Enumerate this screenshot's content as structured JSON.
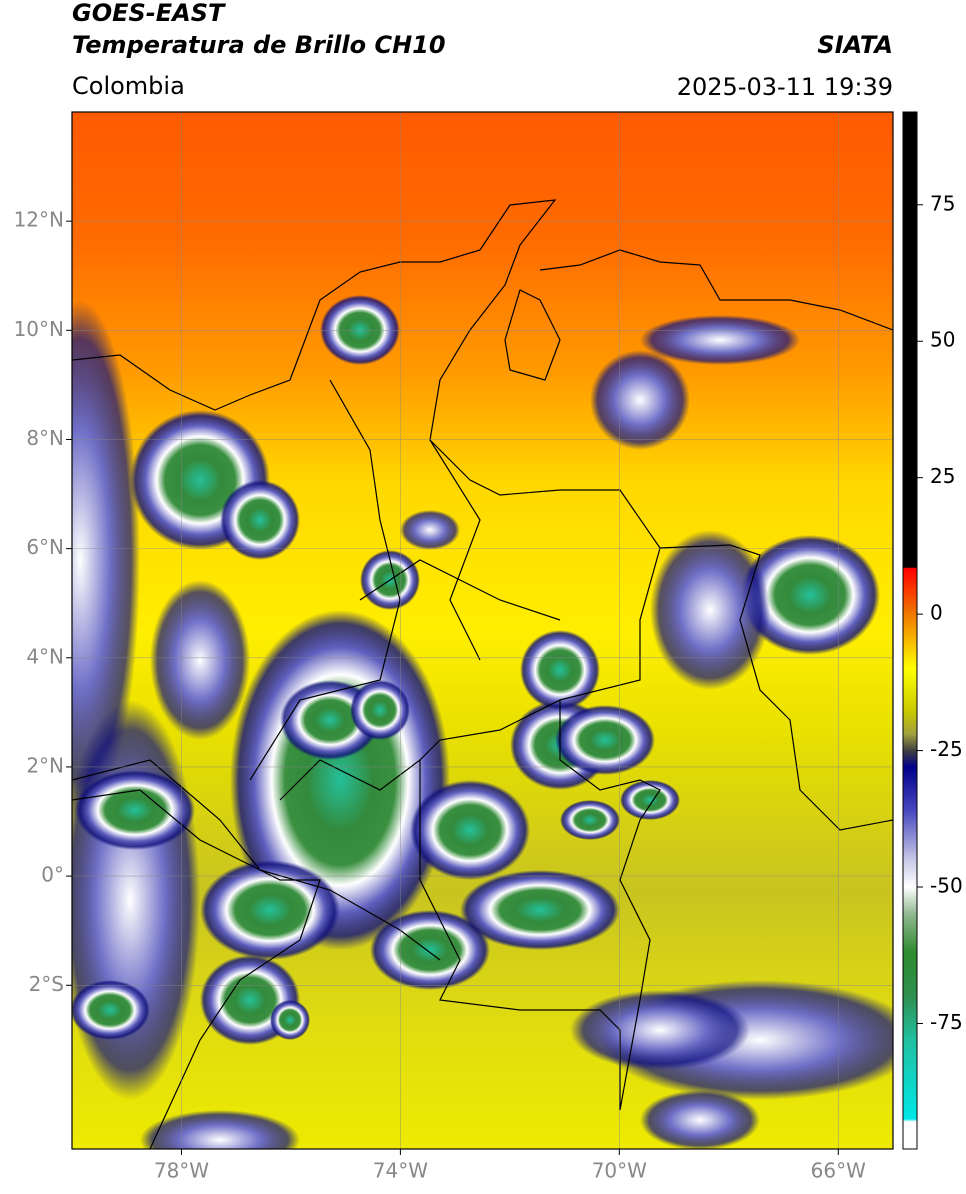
{
  "header": {
    "title": "GOES-EAST",
    "subtitle": "Temperatura de Brillo CH10",
    "region": "Colombia",
    "source": "SIATA",
    "datetime": "2025-03-11 19:39"
  },
  "map": {
    "lon_range": [
      -80,
      -65
    ],
    "lat_range": [
      -5,
      14
    ],
    "grid": true,
    "lon_ticks": [
      {
        "value": -78,
        "label": "78°W"
      },
      {
        "value": -74,
        "label": "74°W"
      },
      {
        "value": -70,
        "label": "70°W"
      },
      {
        "value": -66,
        "label": "66°W"
      }
    ],
    "lat_ticks": [
      {
        "value": 12,
        "label": "12°N"
      },
      {
        "value": 10,
        "label": "10°N"
      },
      {
        "value": 8,
        "label": "8°N"
      },
      {
        "value": 6,
        "label": "6°N"
      },
      {
        "value": 4,
        "label": "4°N"
      },
      {
        "value": 2,
        "label": "2°N"
      },
      {
        "value": 0,
        "label": "0°"
      },
      {
        "value": -2,
        "label": "2°S"
      }
    ]
  },
  "colorbar": {
    "range": [
      -98,
      92
    ],
    "ticks": [
      75,
      50,
      25,
      0,
      -25,
      -50,
      -75
    ],
    "colormap": [
      {
        "value": 92,
        "color": "#000000"
      },
      {
        "value": 8.6,
        "color": "#000000"
      },
      {
        "value": 8.4,
        "color": "#ff0000"
      },
      {
        "value": 0,
        "color": "#f07800"
      },
      {
        "value": -10,
        "color": "#ffff00"
      },
      {
        "value": -18,
        "color": "#c8c800"
      },
      {
        "value": -22,
        "color": "#a0a040"
      },
      {
        "value": -25,
        "color": "#404040"
      },
      {
        "value": -28,
        "color": "#00008a"
      },
      {
        "value": -36,
        "color": "#4848c0"
      },
      {
        "value": -45,
        "color": "#c8c8e8"
      },
      {
        "value": -50,
        "color": "#ffffff"
      },
      {
        "value": -55,
        "color": "#90b890"
      },
      {
        "value": -62,
        "color": "#2e8b2e"
      },
      {
        "value": -70,
        "color": "#2f9050"
      },
      {
        "value": -78,
        "color": "#20c0a0"
      },
      {
        "value": -92.5,
        "color": "#00e8e8"
      },
      {
        "value": -93,
        "color": "#ffffff"
      },
      {
        "value": -98,
        "color": "#ffffff"
      }
    ]
  }
}
